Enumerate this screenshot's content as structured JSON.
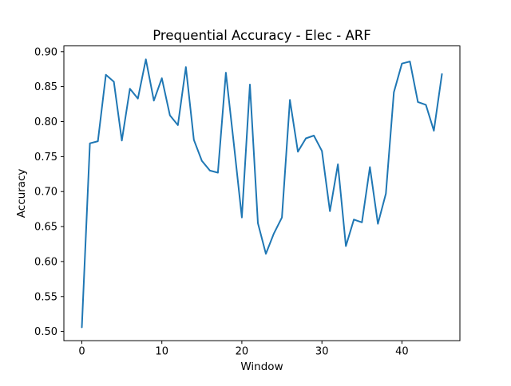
{
  "window": {
    "title": "Prequential Accuracy - Elec - ARF"
  },
  "chart_data": {
    "type": "line",
    "title": "Prequential Accuracy - Elec - ARF",
    "xlabel": "Window",
    "ylabel": "Accuracy",
    "legend": "none",
    "grid": false,
    "line_color": "#1f77b4",
    "background_color": "#ffffff",
    "xlim": [
      -2.25,
      47.25
    ],
    "ylim": [
      0.4868,
      0.9082
    ],
    "xticks": [
      0,
      10,
      20,
      30,
      40
    ],
    "xtick_labels": [
      "0",
      "10",
      "20",
      "30",
      "40"
    ],
    "yticks": [
      0.5,
      0.55,
      0.6,
      0.65,
      0.7,
      0.75,
      0.8,
      0.85,
      0.9
    ],
    "ytick_labels": [
      "0.50",
      "0.55",
      "0.60",
      "0.65",
      "0.70",
      "0.75",
      "0.80",
      "0.85",
      "0.90"
    ],
    "x": [
      0,
      1,
      2,
      3,
      4,
      5,
      6,
      7,
      8,
      9,
      10,
      11,
      12,
      13,
      14,
      15,
      16,
      17,
      18,
      19,
      20,
      21,
      22,
      23,
      24,
      25,
      26,
      27,
      28,
      29,
      30,
      31,
      32,
      33,
      34,
      35,
      36,
      37,
      38,
      39,
      40,
      41,
      42,
      43,
      44,
      45
    ],
    "values": [
      0.506,
      0.769,
      0.772,
      0.867,
      0.857,
      0.773,
      0.847,
      0.833,
      0.889,
      0.83,
      0.862,
      0.809,
      0.795,
      0.878,
      0.774,
      0.744,
      0.73,
      0.727,
      0.87,
      0.768,
      0.663,
      0.853,
      0.655,
      0.611,
      0.64,
      0.663,
      0.831,
      0.757,
      0.776,
      0.78,
      0.758,
      0.672,
      0.739,
      0.622,
      0.66,
      0.656,
      0.735,
      0.654,
      0.697,
      0.842,
      0.883,
      0.886,
      0.828,
      0.824,
      0.787,
      0.868
    ]
  }
}
